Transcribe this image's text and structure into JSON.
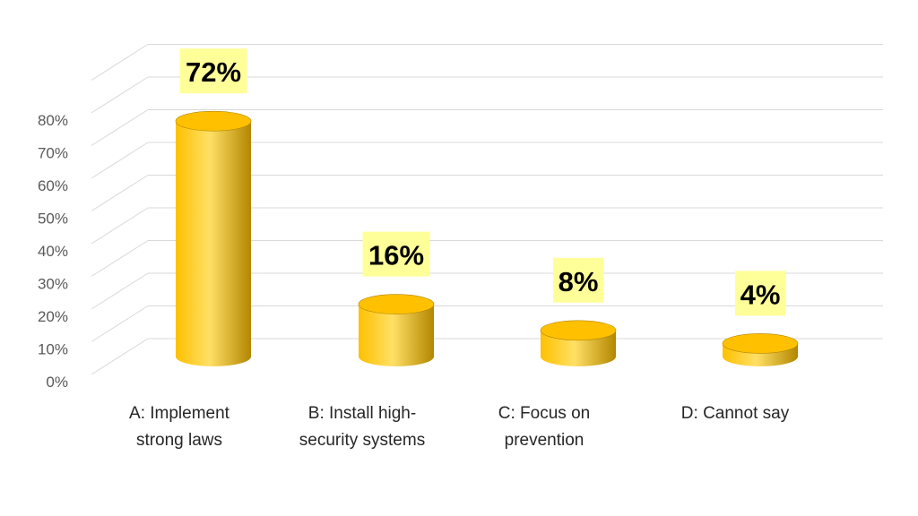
{
  "chart_data": {
    "type": "bar",
    "title": "",
    "xlabel": "",
    "ylabel": "",
    "ylim": [
      0,
      80
    ],
    "yticks": [
      "0%",
      "10%",
      "20%",
      "30%",
      "40%",
      "50%",
      "60%",
      "70%",
      "80%"
    ],
    "categories": [
      [
        "A: Implement",
        "strong laws"
      ],
      [
        "B: Install high-",
        "security systems"
      ],
      [
        "C: Focus on",
        "prevention"
      ],
      [
        "D: Cannot say"
      ]
    ],
    "values": [
      72,
      16,
      8,
      4
    ],
    "data_labels": [
      "72%",
      "16%",
      "8%",
      "4%"
    ],
    "grid": true,
    "style": "3d-cylinder",
    "colors": {
      "bar_light": "#FFE066",
      "bar_mid": "#FFC000",
      "bar_dark": "#B38600",
      "label_bg": "#FFFF99",
      "grid": "#D9D9D9"
    }
  }
}
